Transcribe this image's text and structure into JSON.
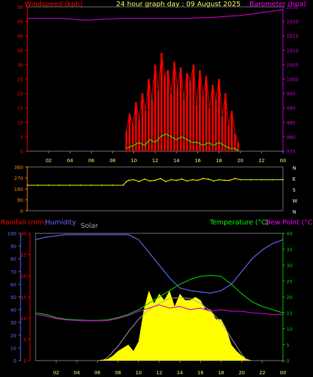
{
  "header": {
    "windspeed_label": "Windspeed (kph)",
    "title": "24 hour graph day : 09 August 2025",
    "barometer_label": "Barometer (hpa)"
  },
  "footer_labels": {
    "rainfall": "Rainfall (mm)",
    "humidity": "Humidity",
    "solar": "Solar",
    "temperature": "Temperature (°C)",
    "dewpoint": "Dew Point (°C)"
  },
  "colors": {
    "wind_gust": "#ff0000",
    "wind_avg": "#00ff00",
    "barometer": "#cc00cc",
    "direction": "#e6e600",
    "humidity": "#6a6aff",
    "temperature": "#00cc00",
    "dewpoint": "#cc00cc",
    "solar": "#ffff00",
    "rain": "#ff0000",
    "axis_orange": "#ff8800"
  },
  "chart_data": [
    {
      "type": "line",
      "panel": "wind_barometer",
      "x_ticks": [
        "02",
        "04",
        "06",
        "08",
        "10",
        "12",
        "14",
        "16",
        "18",
        "20",
        "22",
        "00"
      ],
      "y_left_ticks": [
        "0",
        "5",
        "10",
        "15",
        "20",
        "25",
        "30",
        "35",
        "40",
        "45",
        "50"
      ],
      "y_left_label": "Windspeed (kph)",
      "y_left_range": [
        0,
        50
      ],
      "y_right_ticks": [
        "975",
        "980",
        "985",
        "990",
        "995",
        "1000",
        "1005",
        "1010",
        "1015",
        "1020",
        "1025"
      ],
      "y_right_label": "Barometer (hpa)",
      "y_right_range": [
        975,
        1025
      ],
      "series": [
        {
          "name": "Barometer",
          "axis": "right",
          "x": [
            0,
            1,
            2,
            3,
            4,
            5,
            5.5,
            6,
            7,
            8,
            9,
            10,
            11,
            12,
            13,
            14,
            15,
            16,
            17,
            18,
            19,
            20,
            21,
            22,
            23,
            24
          ],
          "values": [
            1021,
            1021,
            1021,
            1021,
            1020.8,
            1020.5,
            1020.4,
            1020.5,
            1020.7,
            1020.8,
            1021,
            1021,
            1021,
            1021,
            1021,
            1021,
            1021,
            1021.2,
            1021.3,
            1021.5,
            1021.8,
            1022,
            1022.5,
            1023,
            1023.5,
            1024
          ]
        },
        {
          "name": "Wind gust",
          "axis": "left",
          "x": [
            9.3,
            9.6,
            9.9,
            10.2,
            10.5,
            10.8,
            11.1,
            11.4,
            11.7,
            12,
            12.3,
            12.6,
            12.9,
            13.2,
            13.5,
            13.8,
            14.1,
            14.4,
            14.7,
            15,
            15.3,
            15.6,
            15.9,
            16.2,
            16.5,
            16.8,
            17.1,
            17.4,
            17.7,
            18,
            18.3,
            18.6,
            18.9,
            19.2,
            19.5,
            19.8
          ],
          "values": [
            7,
            13,
            9,
            17,
            11,
            20,
            14,
            25,
            18,
            30,
            21,
            34,
            26,
            28,
            20,
            31,
            22,
            29,
            18,
            27,
            24,
            30,
            16,
            28,
            19,
            26,
            15,
            23,
            18,
            25,
            12,
            20,
            9,
            14,
            6,
            3
          ]
        },
        {
          "name": "Wind average",
          "axis": "left",
          "x": [
            9.3,
            10,
            10.5,
            11,
            11.5,
            12,
            12.5,
            13,
            13.5,
            14,
            14.5,
            15,
            15.5,
            16,
            16.5,
            17,
            17.5,
            18,
            18.5,
            19,
            19.5,
            19.8
          ],
          "values": [
            1,
            2,
            3,
            2,
            4,
            3,
            5,
            6,
            5,
            4,
            5,
            4,
            3,
            3,
            2,
            3,
            2,
            3,
            2,
            1,
            1,
            0
          ]
        }
      ]
    },
    {
      "type": "scatter",
      "panel": "wind_direction",
      "x_ticks": [
        "02",
        "04",
        "06",
        "08",
        "10",
        "12",
        "14",
        "16",
        "18",
        "20",
        "22",
        "00"
      ],
      "y_left_ticks": [
        "0",
        "90",
        "180",
        "270",
        "360"
      ],
      "y_left_range": [
        0,
        360
      ],
      "y_right_ticks": [
        "N",
        "W",
        "S",
        "E",
        "N"
      ],
      "series": [
        {
          "name": "Wind direction",
          "x": [
            0,
            1,
            2,
            3,
            4,
            5,
            6,
            7,
            8,
            9,
            9.3,
            9.5,
            10,
            10.5,
            11,
            11.5,
            12,
            12.5,
            13,
            13.5,
            14,
            14.5,
            15,
            15.5,
            16,
            16.5,
            17,
            17.5,
            18,
            18.5,
            19,
            19.5,
            20,
            21,
            22,
            23,
            24
          ],
          "values": [
            210,
            210,
            210,
            210,
            210,
            210,
            210,
            210,
            210,
            210,
            240,
            250,
            255,
            240,
            260,
            245,
            250,
            265,
            240,
            255,
            250,
            260,
            245,
            255,
            250,
            265,
            260,
            245,
            255,
            250,
            250,
            265,
            255,
            255,
            255,
            255,
            255
          ]
        }
      ]
    },
    {
      "type": "line",
      "panel": "temperature_humidity_solar",
      "x_ticks": [
        "02",
        "04",
        "06",
        "08",
        "10",
        "12",
        "14",
        "16",
        "18",
        "20",
        "22",
        "00"
      ],
      "y_humidity_ticks": [
        "0",
        "10",
        "20",
        "30",
        "40",
        "50",
        "60",
        "70",
        "80",
        "90",
        "100"
      ],
      "y_humidity_range": [
        0,
        100
      ],
      "y_rain_ticks": [
        "0",
        "5",
        "10",
        "15",
        "20",
        "25",
        "30"
      ],
      "y_rain_range": [
        0,
        30
      ],
      "y_temp_ticks": [
        "0",
        "5",
        "10",
        "15",
        "20",
        "25",
        "30",
        "35",
        "40"
      ],
      "y_temp_range": [
        0,
        40
      ],
      "series": [
        {
          "name": "Humidity",
          "axis": "humidity",
          "x": [
            0,
            1,
            2,
            3,
            4,
            5,
            6,
            7,
            8,
            9,
            10,
            11,
            12,
            13,
            14,
            15,
            16,
            17,
            18,
            19,
            20,
            21,
            22,
            23,
            24
          ],
          "values": [
            95,
            97,
            98,
            99,
            99,
            99,
            99,
            99,
            99,
            99,
            95,
            85,
            75,
            65,
            57,
            55,
            54,
            53,
            55,
            60,
            70,
            80,
            87,
            92,
            95
          ]
        },
        {
          "name": "Temperature",
          "axis": "temperature",
          "x": [
            0,
            1,
            2,
            3,
            4,
            5,
            6,
            7,
            8,
            9,
            10,
            11,
            12,
            13,
            14,
            15,
            16,
            17,
            18,
            19,
            20,
            21,
            22,
            23,
            24
          ],
          "values": [
            15,
            14.5,
            13.5,
            13,
            12.8,
            12.6,
            12.6,
            12.8,
            13.5,
            14.5,
            16,
            18,
            20,
            22,
            24,
            25.5,
            26.5,
            26.8,
            26.5,
            24,
            21,
            18.5,
            17,
            16,
            15
          ]
        },
        {
          "name": "Dew point",
          "axis": "temperature",
          "x": [
            0,
            1,
            2,
            3,
            4,
            5,
            6,
            7,
            8,
            9,
            10,
            11,
            12,
            13,
            14,
            15,
            16,
            17,
            18,
            19,
            20,
            21,
            22,
            23,
            24
          ],
          "values": [
            14.5,
            14,
            13.2,
            12.8,
            12.6,
            12.5,
            12.5,
            12.6,
            13.2,
            14.2,
            15.5,
            16.5,
            17.5,
            16.5,
            17,
            16,
            16.5,
            15.5,
            16,
            15.5,
            15.5,
            15,
            14.8,
            14.5,
            14.5
          ]
        },
        {
          "name": "Solar",
          "axis": "temperature",
          "x": [
            0,
            1,
            2,
            3,
            4,
            5,
            6,
            6.5,
            7,
            7.5,
            8,
            8.5,
            9,
            9.5,
            10,
            10.5,
            11,
            11.5,
            12,
            12.5,
            13,
            13.5,
            14,
            14.5,
            15,
            15.5,
            16,
            16.5,
            17,
            17.5,
            18,
            18.5,
            19,
            19.5,
            20,
            20.5,
            21,
            22,
            23,
            24
          ],
          "values": [
            0,
            0,
            0,
            0,
            0,
            0,
            0,
            0.3,
            0.5,
            1.5,
            3,
            4,
            5,
            3,
            6,
            16,
            22,
            18,
            21,
            19,
            22,
            17,
            21,
            19,
            19,
            20,
            19,
            16,
            16,
            13,
            13,
            10,
            5,
            3,
            1.5,
            0.5,
            0,
            0,
            0,
            0
          ]
        },
        {
          "name": "Solar max",
          "axis": "temperature",
          "x": [
            6.5,
            7,
            8,
            9,
            10,
            11,
            12,
            13,
            14,
            15,
            16,
            17,
            18,
            19,
            20,
            20.5
          ],
          "values": [
            0,
            1,
            4.5,
            9,
            13,
            16,
            18,
            19.5,
            19.8,
            19.5,
            18,
            15.5,
            12,
            7,
            2,
            0
          ]
        }
      ]
    }
  ]
}
